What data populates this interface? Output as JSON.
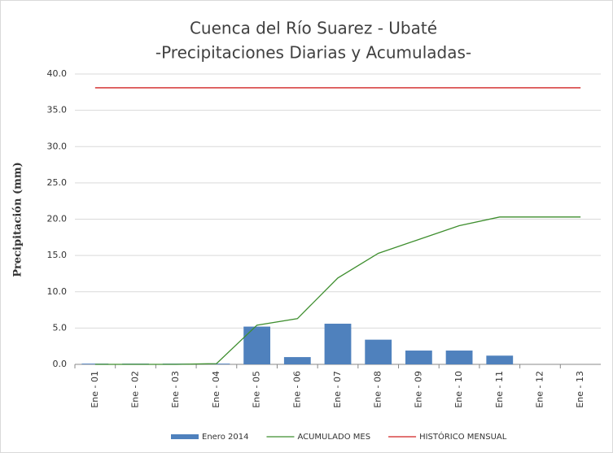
{
  "chart_data": {
    "type": "combo",
    "title": [
      "Cuenca del Río Suarez - Ubaté",
      "-Precipitaciones Diarias y Acumuladas-"
    ],
    "y_label": "Precipitación (mm)",
    "categories": [
      "Ene - 01",
      "Ene - 02",
      "Ene - 03",
      "Ene - 04",
      "Ene - 05",
      "Ene - 06",
      "Ene - 07",
      "Ene - 08",
      "Ene - 09",
      "Ene - 10",
      "Ene - 11",
      "Ene - 12",
      "Ene - 13"
    ],
    "series": [
      {
        "name": "Enero 2014",
        "type": "bar",
        "color": "#4f81bd",
        "values": [
          0.1,
          0.1,
          0.1,
          0.1,
          5.2,
          1.0,
          5.6,
          3.4,
          1.9,
          1.9,
          1.2,
          0,
          0
        ]
      },
      {
        "name": "ACUMULADO MES",
        "type": "line",
        "color": "#3e8e2e",
        "values": [
          0.0,
          0.0,
          0.0,
          0.1,
          5.4,
          6.3,
          11.9,
          15.3,
          17.2,
          19.1,
          20.3,
          20.3,
          20.3
        ]
      },
      {
        "name": "HISTÓRICO MENSUAL",
        "type": "line",
        "color": "#d02020",
        "values": [
          38.1,
          38.1,
          38.1,
          38.1,
          38.1,
          38.1,
          38.1,
          38.1,
          38.1,
          38.1,
          38.1,
          38.1,
          38.1
        ]
      }
    ],
    "ylim": [
      0,
      40
    ],
    "yticks": [
      {
        "value": 0,
        "label": "0.0"
      },
      {
        "value": 5,
        "label": "5.0"
      },
      {
        "value": 10,
        "label": "10.0"
      },
      {
        "value": 15,
        "label": "15.0"
      },
      {
        "value": 20,
        "label": "20.0"
      },
      {
        "value": 25,
        "label": "25.0"
      },
      {
        "value": 30,
        "label": "30.0"
      },
      {
        "value": 35,
        "label": "35.0"
      },
      {
        "value": 40,
        "label": "40.0"
      }
    ],
    "grid": true,
    "legend": "bottom"
  }
}
